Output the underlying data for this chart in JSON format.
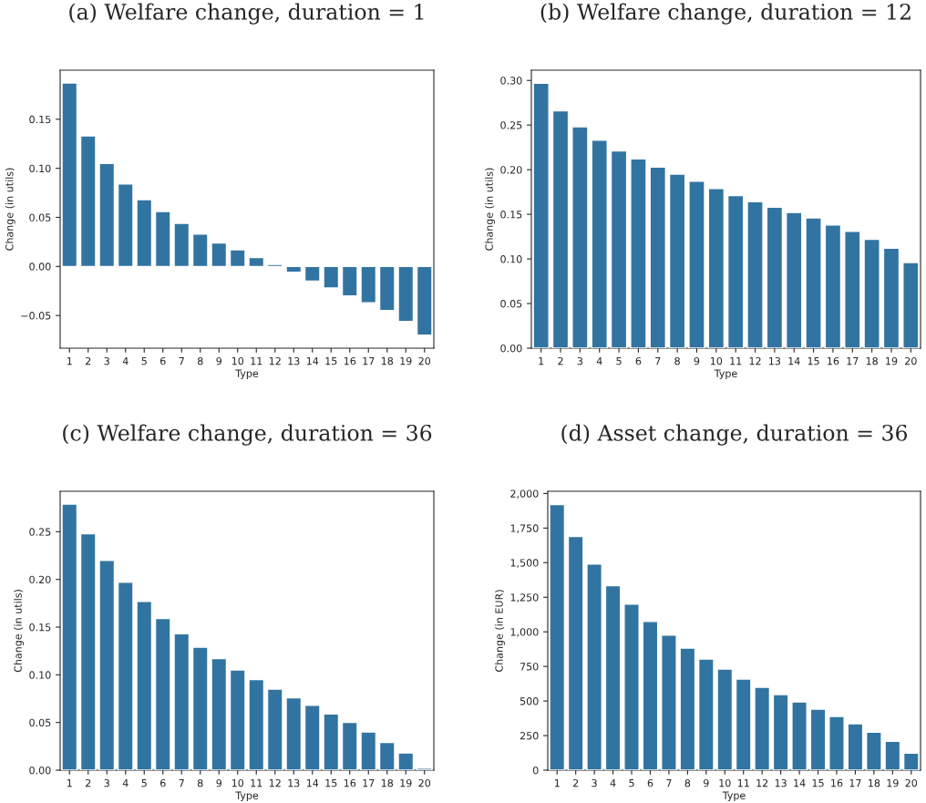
{
  "chart_data": [
    {
      "type": "bar",
      "title": "(a) Welfare change, duration = 1",
      "xlabel": "Type",
      "ylabel": "Change (in utils)",
      "categories": [
        "1",
        "2",
        "3",
        "4",
        "5",
        "6",
        "7",
        "8",
        "9",
        "10",
        "11",
        "12",
        "13",
        "14",
        "15",
        "16",
        "17",
        "18",
        "19",
        "20"
      ],
      "values": [
        0.187,
        0.133,
        0.105,
        0.084,
        0.068,
        0.056,
        0.044,
        0.033,
        0.024,
        0.017,
        0.009,
        0.002,
        -0.006,
        -0.015,
        -0.022,
        -0.03,
        -0.037,
        -0.045,
        -0.056,
        -0.07
      ],
      "color": "#3274a1",
      "ylim": [
        -0.0833,
        0.2
      ],
      "yticks": [
        {
          "value": -0.05,
          "label": "−0.05"
        },
        {
          "value": 0,
          "label": "0.00"
        },
        {
          "value": 0.05,
          "label": "0.05"
        },
        {
          "value": 0.1,
          "label": "0.10"
        },
        {
          "value": 0.15,
          "label": "0.15"
        }
      ],
      "grid": false
    },
    {
      "type": "bar",
      "title": "(b) Welfare change, duration = 12",
      "xlabel": "Type",
      "ylabel": "Change (in utils)",
      "categories": [
        "1",
        "2",
        "3",
        "4",
        "5",
        "6",
        "7",
        "8",
        "9",
        "10",
        "11",
        "12",
        "13",
        "14",
        "15",
        "16",
        "17",
        "18",
        "19",
        "20"
      ],
      "values": [
        0.297,
        0.266,
        0.248,
        0.233,
        0.221,
        0.212,
        0.203,
        0.195,
        0.187,
        0.179,
        0.171,
        0.164,
        0.158,
        0.152,
        0.146,
        0.138,
        0.131,
        0.122,
        0.112,
        0.096
      ],
      "color": "#3274a1",
      "ylim": [
        0,
        0.3115
      ],
      "yticks": [
        {
          "value": 0,
          "label": "0.00"
        },
        {
          "value": 0.05,
          "label": "0.05"
        },
        {
          "value": 0.1,
          "label": "0.10"
        },
        {
          "value": 0.15,
          "label": "0.15"
        },
        {
          "value": 0.2,
          "label": "0.20"
        },
        {
          "value": 0.25,
          "label": "0.25"
        },
        {
          "value": 0.3,
          "label": "0.30"
        }
      ],
      "grid": false
    },
    {
      "type": "bar",
      "title": "(c) Welfare change, duration = 36",
      "xlabel": "Type",
      "ylabel": "Change (in utils)",
      "categories": [
        "1",
        "2",
        "3",
        "4",
        "5",
        "6",
        "7",
        "8",
        "9",
        "10",
        "11",
        "12",
        "13",
        "14",
        "15",
        "16",
        "17",
        "18",
        "19",
        "20"
      ],
      "values": [
        0.279,
        0.248,
        0.22,
        0.197,
        0.177,
        0.159,
        0.143,
        0.129,
        0.117,
        0.105,
        0.095,
        0.085,
        0.076,
        0.068,
        0.059,
        0.05,
        0.04,
        0.029,
        0.018,
        0.002
      ],
      "color": "#3274a1",
      "ylim": [
        0,
        0.2924
      ],
      "yticks": [
        {
          "value": 0,
          "label": "0.00"
        },
        {
          "value": 0.05,
          "label": "0.05"
        },
        {
          "value": 0.1,
          "label": "0.10"
        },
        {
          "value": 0.15,
          "label": "0.15"
        },
        {
          "value": 0.2,
          "label": "0.20"
        },
        {
          "value": 0.25,
          "label": "0.25"
        }
      ],
      "grid": false
    },
    {
      "type": "bar",
      "title": "(d) Asset change, duration = 36",
      "xlabel": "Type",
      "ylabel": "Change (in EUR)",
      "categories": [
        "1",
        "2",
        "3",
        "4",
        "5",
        "6",
        "7",
        "8",
        "9",
        "10",
        "11",
        "12",
        "13",
        "14",
        "15",
        "16",
        "17",
        "18",
        "19",
        "20"
      ],
      "values": [
        1920,
        1689,
        1491,
        1333,
        1200,
        1075,
        976,
        883,
        804,
        731,
        659,
        599,
        546,
        493,
        441,
        388,
        335,
        275,
        209,
        123
      ],
      "color": "#3274a1",
      "ylim": [
        0,
        2016
      ],
      "yticks": [
        0,
        250,
        500,
        750,
        {
          "value": 1000,
          "label": "1,000"
        },
        {
          "value": 1250,
          "label": "1,250"
        },
        {
          "value": 1500,
          "label": "1,500"
        },
        {
          "value": 1750,
          "label": "1,750"
        },
        {
          "value": 2000,
          "label": "2,000"
        }
      ],
      "grid": false
    }
  ]
}
